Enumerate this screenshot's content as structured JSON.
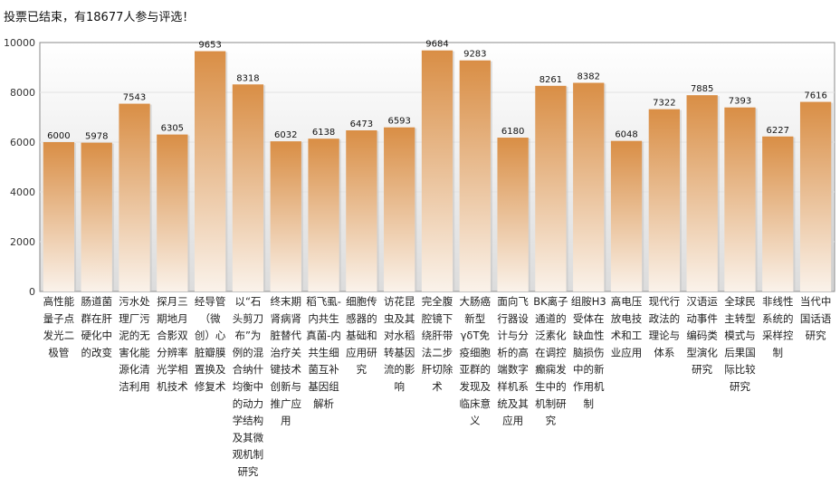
{
  "status_message": "投票已结束，有18677人参与评选！",
  "chart_data": {
    "type": "bar",
    "title": "",
    "xlabel": "",
    "ylabel": "",
    "ylim": [
      0,
      10000
    ],
    "yticks": [
      0,
      2000,
      4000,
      6000,
      8000,
      10000
    ],
    "grid": true,
    "legend": "none",
    "bar_color_top": "#d98e45",
    "bar_color_bottom": "#faf2ea",
    "categories": [
      {
        "lines": [
          "高性能",
          "量子点",
          "发光二",
          "极管"
        ],
        "value": 6000
      },
      {
        "lines": [
          "肠道菌",
          "群在肝",
          "硬化中",
          "的改变"
        ],
        "value": 5978
      },
      {
        "lines": [
          "污水处",
          "理厂污",
          "泥的无",
          "害化能",
          "源化清",
          "洁利用"
        ],
        "value": 7543
      },
      {
        "lines": [
          "探月三",
          "期地月",
          "合影双",
          "分辨率",
          "光学相",
          "机技术"
        ],
        "value": 6305
      },
      {
        "lines": [
          "经导管",
          "（微",
          "创）心",
          "脏瓣膜",
          "置换及",
          "修复术"
        ],
        "value": 9653
      },
      {
        "lines": [
          "以“石",
          "头剪刀",
          "布”为",
          "例的混",
          "合纳什",
          "均衡中",
          "的动力",
          "学结构",
          "及其微",
          "观机制",
          "研究"
        ],
        "value": 8318
      },
      {
        "lines": [
          "终末期",
          "肾病肾",
          "脏替代",
          "治疗关",
          "键技术",
          "创新与",
          "推广应",
          "用"
        ],
        "value": 6032
      },
      {
        "lines": [
          "稻飞虱-",
          "内共生",
          "真菌-内",
          "共生细",
          "菌互补",
          "基因组",
          "解析"
        ],
        "value": 6138
      },
      {
        "lines": [
          "细胞传",
          "感器的",
          "基础和",
          "应用研",
          "究"
        ],
        "value": 6473
      },
      {
        "lines": [
          "访花昆",
          "虫及其",
          "对水稻",
          "转基因",
          "流的影",
          "响"
        ],
        "value": 6593
      },
      {
        "lines": [
          "完全腹",
          "腔镜下",
          "绕肝带",
          "法二步",
          "肝切除",
          "术"
        ],
        "value": 9684
      },
      {
        "lines": [
          "大肠癌",
          "新型",
          "γδT免",
          "疫细胞",
          "亚群的",
          "发现及",
          "临床意",
          "义"
        ],
        "value": 9283
      },
      {
        "lines": [
          "面向飞",
          "行器设",
          "计与分",
          "析的高",
          "端数字",
          "样机系",
          "统及其",
          "应用"
        ],
        "value": 6180
      },
      {
        "lines": [
          "BK离子",
          "通道的",
          "泛素化",
          "在调控",
          "癫痫发",
          "生中的",
          "机制研",
          "究"
        ],
        "value": 8261
      },
      {
        "lines": [
          "组胺H3",
          "受体在",
          "缺血性",
          "脑损伤",
          "中的新",
          "作用机",
          "制"
        ],
        "value": 8382
      },
      {
        "lines": [
          "高电压",
          "放电技",
          "术和工",
          "业应用"
        ],
        "value": 6048
      },
      {
        "lines": [
          "现代行",
          "政法的",
          "理论与",
          "体系"
        ],
        "value": 7322
      },
      {
        "lines": [
          "汉语运",
          "动事件",
          "编码类",
          "型演化",
          "研究"
        ],
        "value": 7885
      },
      {
        "lines": [
          "全球民",
          "主转型",
          "模式与",
          "后果国",
          "际比较",
          "研究"
        ],
        "value": 7393
      },
      {
        "lines": [
          "非线性",
          "系统的",
          "采样控",
          "制"
        ],
        "value": 6227
      },
      {
        "lines": [
          "当代中",
          "国话语",
          "研究"
        ],
        "value": 7616
      }
    ]
  }
}
